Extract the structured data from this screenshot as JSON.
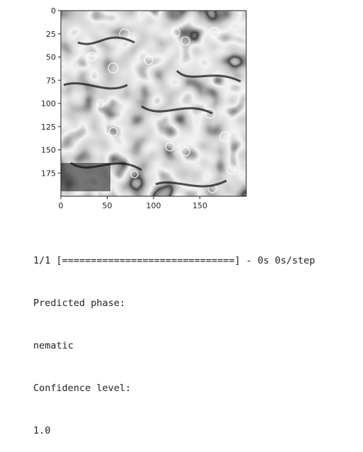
{
  "plot": {
    "image_description_icon": "polarized-micrograph-icon",
    "x_ticks": [
      0,
      50,
      100,
      150
    ],
    "y_ticks": [
      0,
      25,
      50,
      75,
      100,
      125,
      150,
      175
    ],
    "x_range": [
      0,
      200
    ],
    "y_range": [
      0,
      200
    ],
    "colors": {
      "axis": "#222222",
      "background": "#ffffff"
    }
  },
  "output": {
    "progress_line": "1/1 [==============================] - 0s 0s/step",
    "predicted_label": "Predicted phase:",
    "predicted_value": "nematic",
    "confidence_label": "Confidence level:",
    "confidence_value": "1.0"
  }
}
